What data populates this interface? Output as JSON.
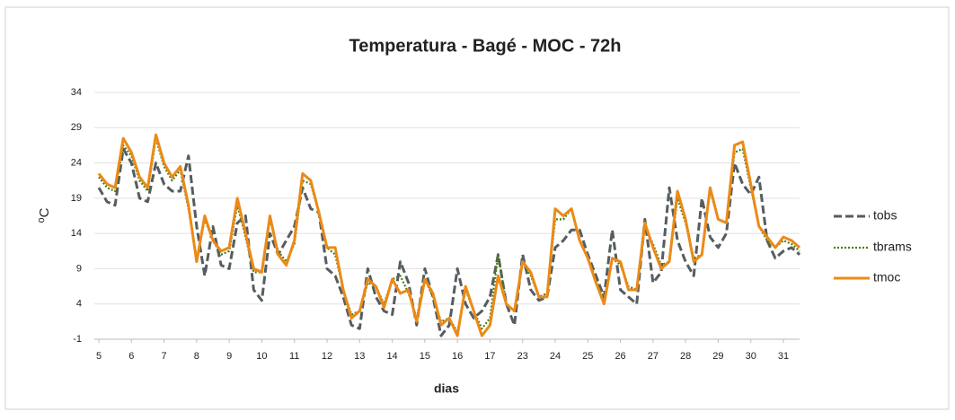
{
  "chart_data": {
    "type": "line",
    "title": "Temperatura - Bagé - MOC - 72h",
    "xlabel": "dias",
    "ylabel": "⁰C",
    "categories": [
      "5",
      null,
      null,
      null,
      "6",
      null,
      null,
      null,
      "7",
      null,
      null,
      null,
      "8",
      null,
      null,
      null,
      "9",
      null,
      null,
      null,
      "10",
      null,
      null,
      null,
      "11",
      null,
      null,
      null,
      "12",
      null,
      null,
      null,
      "13",
      null,
      null,
      null,
      "14",
      null,
      null,
      null,
      "15",
      null,
      null,
      null,
      "16",
      null,
      null,
      null,
      "17",
      null,
      null,
      null,
      "23",
      null,
      null,
      null,
      "24",
      null,
      null,
      null,
      "25",
      null,
      null,
      null,
      "26",
      null,
      null,
      null,
      "27",
      null,
      null,
      null,
      "28",
      null,
      null,
      null,
      "29",
      null,
      null,
      null,
      "30",
      null,
      null,
      null,
      "31",
      null,
      null
    ],
    "series": [
      {
        "name": "tobs",
        "color": "#555d60",
        "dash": "dashed",
        "values": [
          20.5,
          18.5,
          18,
          26,
          24,
          19,
          18.5,
          24,
          21,
          20,
          20,
          25,
          15,
          8,
          15,
          9.5,
          9,
          15.5,
          16.5,
          6,
          4.5,
          14,
          11,
          13,
          15,
          20.5,
          17.5,
          17,
          9,
          8,
          5,
          1,
          0.5,
          9,
          5,
          3,
          2.5,
          10,
          7,
          1,
          9,
          5,
          -0.5,
          1,
          9,
          4,
          2,
          3,
          5,
          11,
          4,
          1,
          11,
          6,
          4.5,
          5,
          12,
          13,
          14.5,
          14.5,
          11,
          8,
          5,
          14.5,
          6,
          5,
          4,
          16,
          7,
          8.5,
          20.5,
          13,
          10,
          8,
          19,
          13.5,
          12,
          14,
          24,
          21,
          19.5,
          22,
          13,
          10.5,
          11.5,
          12,
          11
        ]
      },
      {
        "name": "tbrams",
        "color": "#4e7a16",
        "dash": "dotted",
        "values": [
          22,
          20.5,
          20,
          26.5,
          25,
          21.5,
          20,
          27.5,
          23.5,
          21.5,
          23,
          17.5,
          10.5,
          16,
          13,
          11,
          11.5,
          18,
          13.5,
          8.5,
          8.5,
          16,
          11.5,
          10,
          12.5,
          21.5,
          21,
          17,
          12,
          11,
          6,
          2.5,
          3,
          7,
          6.5,
          4,
          7.5,
          8,
          5.5,
          2,
          7.5,
          5,
          1.5,
          2,
          0,
          6,
          3,
          0.5,
          2,
          11,
          4,
          3,
          10,
          8,
          5,
          5.5,
          16,
          16,
          17.5,
          13,
          10.5,
          7.5,
          4.5,
          10.5,
          9.5,
          6.5,
          6,
          15,
          12.5,
          9.5,
          10,
          19,
          15.5,
          10.5,
          11,
          20,
          16,
          15.5,
          25.5,
          26,
          20.5,
          15,
          13,
          12,
          13,
          12.5,
          11.5
        ]
      },
      {
        "name": "tmoc",
        "color": "#ec8a16",
        "dash": "solid",
        "values": [
          22.5,
          21,
          20.5,
          27.5,
          25.5,
          22,
          20.5,
          28,
          24,
          22,
          23.5,
          18,
          10,
          16.5,
          13,
          11.5,
          12,
          19,
          14,
          9,
          8.5,
          16.5,
          11,
          9.5,
          13,
          22.5,
          21.5,
          17,
          12,
          12,
          6,
          2,
          3,
          7.5,
          6.5,
          3.5,
          7.5,
          5.5,
          6,
          1.5,
          7.5,
          5.5,
          1,
          2,
          -0.5,
          6.5,
          3,
          -0.5,
          1,
          8,
          4,
          3,
          10,
          8.5,
          5,
          5,
          17.5,
          16.5,
          17.5,
          13,
          10.5,
          7,
          4,
          10.5,
          10,
          6,
          6,
          15.5,
          12,
          9,
          10,
          20,
          16,
          10,
          11,
          20.5,
          16,
          15.5,
          26.5,
          27,
          21,
          15,
          13.5,
          12,
          13.5,
          13,
          12
        ]
      }
    ],
    "ylim": [
      -1,
      34
    ],
    "yticks": [
      -1,
      4,
      9,
      14,
      19,
      24,
      29,
      34
    ],
    "grid": true,
    "legend": "right"
  }
}
